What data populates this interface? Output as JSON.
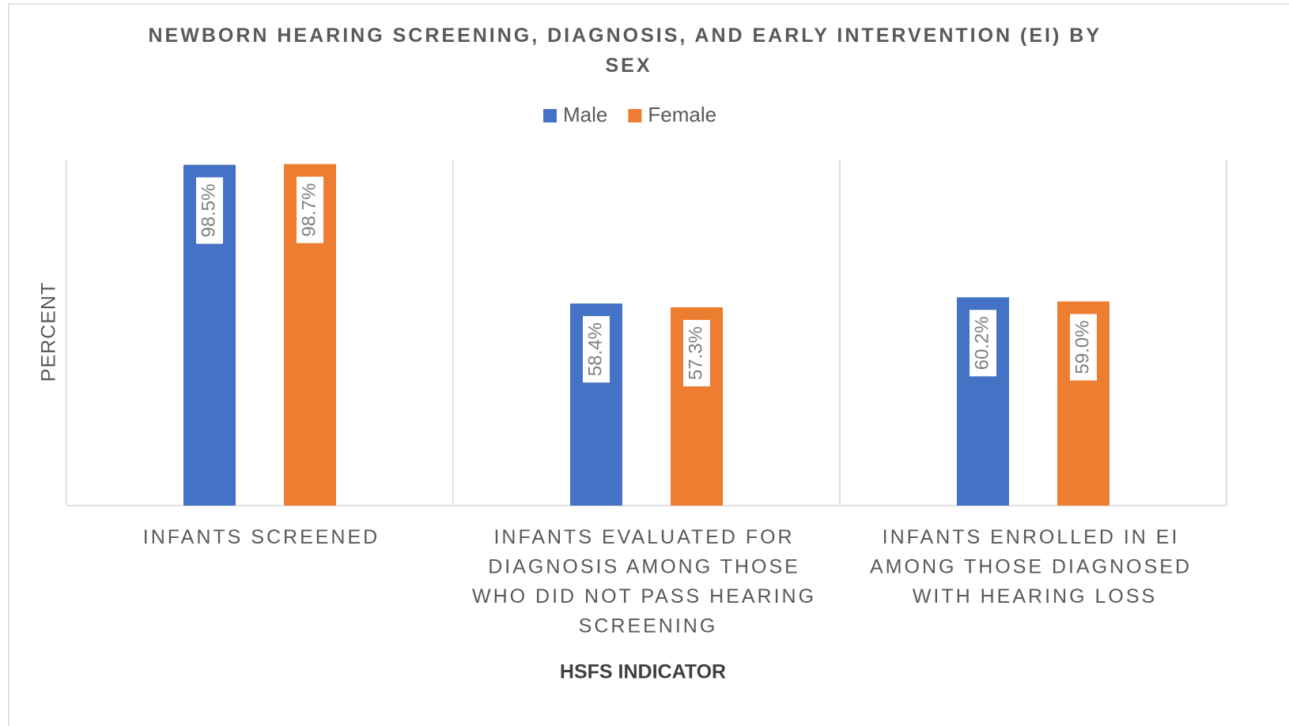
{
  "chart_data": {
    "type": "bar",
    "title": "NEWBORN HEARING SCREENING, DIAGNOSIS, AND EARLY INTERVENTION (EI) BY SEX",
    "x_label": "HSFS INDICATOR",
    "y_label": "PERCENT",
    "categories": [
      "INFANTS SCREENED",
      "INFANTS EVALUATED FOR DIAGNOSIS AMONG THOSE WHO DID NOT PASS HEARING SCREENING",
      "INFANTS ENROLLED IN EI AMONG THOSE DIAGNOSED WITH HEARING LOSS"
    ],
    "series": [
      {
        "name": "Male",
        "color": "#4472c4",
        "values": [
          98.5,
          58.4,
          60.2
        ],
        "value_labels": [
          "98.5%",
          "58.4%",
          "60.2%"
        ]
      },
      {
        "name": "Female",
        "color": "#ed7d31",
        "values": [
          98.7,
          57.3,
          59.0
        ],
        "value_labels": [
          "98.7%",
          "57.3%",
          "59.0%"
        ]
      }
    ],
    "ylim": [
      0,
      100
    ],
    "legend": "top"
  }
}
